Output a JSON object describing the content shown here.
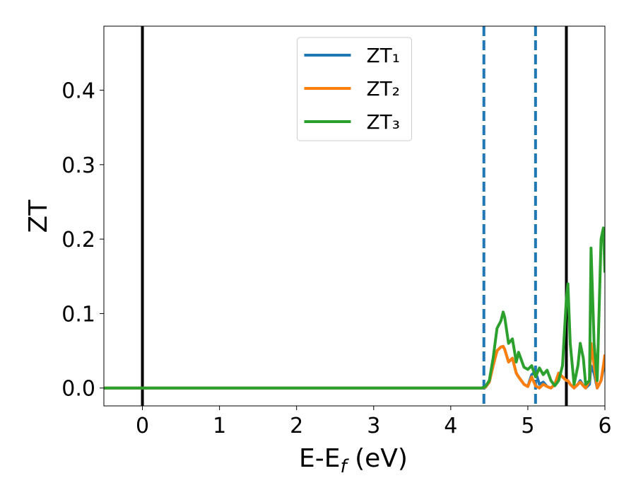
{
  "chart_data": {
    "type": "line",
    "xlabel": {
      "main": "E-E",
      "sub": "f",
      "rest": " (eV)"
    },
    "ylabel": "ZT",
    "xlim": [
      -0.5,
      6
    ],
    "ylim": [
      -0.024,
      0.486
    ],
    "xticks": [
      0,
      1,
      2,
      3,
      4,
      5,
      6
    ],
    "yticks": [
      {
        "value": 0,
        "label": "0.0"
      },
      0.1,
      0.2,
      0.3,
      0.4
    ],
    "legend": "upper center",
    "vlines": [
      {
        "x": 0,
        "color": "#000000",
        "style": "solid"
      },
      {
        "x": 5.5,
        "color": "#000000",
        "style": "solid"
      },
      {
        "x": 4.43,
        "color": "#1f77b4",
        "style": "dashed"
      },
      {
        "x": 5.1,
        "color": "#1f77b4",
        "style": "dashed"
      }
    ],
    "x": [
      -0.5,
      4.3,
      4.4,
      4.45,
      4.5,
      4.55,
      4.6,
      4.65,
      4.68,
      4.7,
      4.75,
      4.8,
      4.85,
      4.88,
      4.95,
      5.0,
      5.05,
      5.1,
      5.15,
      5.2,
      5.25,
      5.3,
      5.35,
      5.4,
      5.45,
      5.5,
      5.52,
      5.55,
      5.6,
      5.65,
      5.68,
      5.72,
      5.75,
      5.8,
      5.82,
      5.86,
      5.9,
      5.95,
      5.98,
      6.0
    ],
    "series": [
      {
        "name": "ZT₁",
        "color": "#1f77b4",
        "values": [
          0,
          0,
          0,
          0.001,
          0.008,
          0.03,
          0.05,
          0.055,
          0.056,
          0.052,
          0.035,
          0.04,
          0.02,
          0.015,
          0.005,
          0.002,
          0.018,
          0.022,
          0.005,
          0.008,
          0.002,
          0,
          0.005,
          0.02,
          0.015,
          0.01,
          0.01,
          0.005,
          0,
          0.005,
          0.01,
          0.003,
          0,
          0.005,
          0.03,
          0.02,
          0,
          0.01,
          0.025,
          0.04
        ]
      },
      {
        "name": "ZT₂",
        "color": "#ff7f0e",
        "values": [
          0,
          0,
          0,
          0.001,
          0.008,
          0.03,
          0.05,
          0.055,
          0.056,
          0.052,
          0.035,
          0.04,
          0.02,
          0.015,
          0.005,
          0.002,
          0.015,
          0.003,
          0,
          0.005,
          0.002,
          0,
          0.005,
          0.02,
          0.015,
          0.01,
          0.01,
          0.005,
          0,
          0.005,
          0.008,
          0.003,
          0,
          0.01,
          0.06,
          0.03,
          0,
          0.01,
          0.03,
          0.045
        ]
      },
      {
        "name": "ZT₃",
        "color": "#2ca02c",
        "values": [
          0,
          0,
          0,
          0.002,
          0.01,
          0.04,
          0.08,
          0.09,
          0.102,
          0.095,
          0.06,
          0.066,
          0.035,
          0.048,
          0.028,
          0.025,
          0.03,
          0.015,
          0.027,
          0.018,
          0.024,
          0.01,
          0.003,
          0.01,
          0.03,
          0.12,
          0.14,
          0.06,
          0.005,
          0.03,
          0.06,
          0.04,
          0.005,
          0.01,
          0.188,
          0.06,
          0.01,
          0.2,
          0.215,
          0.155
        ]
      }
    ]
  }
}
